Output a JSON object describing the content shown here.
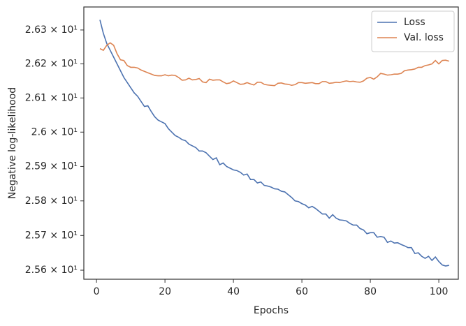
{
  "chart_data": {
    "type": "line",
    "xlabel": "Epochs",
    "ylabel": "Negative log-likelihood",
    "x": [
      1,
      2,
      3,
      4,
      5,
      6,
      7,
      8,
      9,
      10,
      11,
      12,
      13,
      14,
      15,
      16,
      17,
      18,
      19,
      20,
      21,
      22,
      23,
      24,
      25,
      26,
      27,
      28,
      29,
      30,
      31,
      32,
      33,
      34,
      35,
      36,
      37,
      38,
      39,
      40,
      41,
      42,
      43,
      44,
      45,
      46,
      47,
      48,
      49,
      50,
      51,
      52,
      53,
      54,
      55,
      56,
      57,
      58,
      59,
      60,
      61,
      62,
      63,
      64,
      65,
      66,
      67,
      68,
      69,
      70,
      71,
      72,
      73,
      74,
      75,
      76,
      77,
      78,
      79,
      80,
      81,
      82,
      83,
      84,
      85,
      86,
      87,
      88,
      89,
      90,
      91,
      92,
      93,
      94,
      95,
      96,
      97,
      98,
      99,
      100,
      101,
      102,
      103
    ],
    "series": [
      {
        "name": "Loss",
        "color": "#4c72b0",
        "values": [
          26.33,
          26.29,
          26.26,
          26.24,
          26.22,
          26.2,
          26.18,
          26.16,
          26.145,
          26.13,
          26.115,
          26.105,
          26.09,
          26.075,
          26.077,
          26.06,
          26.045,
          26.035,
          26.03,
          26.025,
          26.01,
          26.0,
          25.99,
          25.985,
          25.978,
          25.975,
          25.965,
          25.96,
          25.955,
          25.945,
          25.945,
          25.94,
          25.93,
          25.92,
          25.925,
          25.905,
          25.91,
          25.9,
          25.895,
          25.89,
          25.888,
          25.883,
          25.875,
          25.878,
          25.862,
          25.862,
          25.852,
          25.855,
          25.845,
          25.843,
          25.84,
          25.835,
          25.834,
          25.828,
          25.826,
          25.818,
          25.81,
          25.8,
          25.798,
          25.792,
          25.788,
          25.78,
          25.784,
          25.778,
          25.77,
          25.762,
          25.762,
          25.75,
          25.76,
          25.75,
          25.745,
          25.744,
          25.742,
          25.735,
          25.73,
          25.73,
          25.72,
          25.716,
          25.705,
          25.708,
          25.708,
          25.695,
          25.697,
          25.695,
          25.68,
          25.684,
          25.678,
          25.679,
          25.674,
          25.67,
          25.665,
          25.665,
          25.648,
          25.65,
          25.64,
          25.634,
          25.64,
          25.628,
          25.638,
          25.625,
          25.615,
          25.612,
          25.614
        ]
      },
      {
        "name": "Val. loss",
        "color": "#dd8452",
        "values": [
          26.245,
          26.24,
          26.255,
          26.262,
          26.255,
          26.23,
          26.212,
          26.21,
          26.195,
          26.19,
          26.19,
          26.188,
          26.182,
          26.178,
          26.174,
          26.17,
          26.166,
          26.165,
          26.165,
          26.168,
          26.165,
          26.167,
          26.166,
          26.16,
          26.152,
          26.153,
          26.158,
          26.153,
          26.154,
          26.157,
          26.147,
          26.145,
          26.155,
          26.152,
          26.153,
          26.153,
          26.147,
          26.142,
          26.144,
          26.15,
          26.145,
          26.14,
          26.141,
          26.145,
          26.141,
          26.138,
          26.146,
          26.146,
          26.14,
          26.138,
          26.137,
          26.136,
          26.143,
          26.144,
          26.141,
          26.14,
          26.137,
          26.139,
          26.145,
          26.145,
          26.143,
          26.144,
          26.145,
          26.142,
          26.142,
          26.148,
          26.148,
          26.143,
          26.144,
          26.146,
          26.145,
          26.148,
          26.15,
          26.148,
          26.149,
          26.147,
          26.146,
          26.15,
          26.158,
          26.16,
          26.155,
          26.162,
          26.172,
          26.17,
          26.167,
          26.168,
          26.17,
          26.17,
          26.172,
          26.18,
          26.182,
          26.183,
          26.185,
          26.19,
          26.19,
          26.195,
          26.197,
          26.2,
          26.21,
          26.2,
          26.21,
          26.211,
          26.208
        ]
      }
    ],
    "xlim": [
      -3.7,
      105.7
    ],
    "xticks": [
      0,
      20,
      40,
      60,
      80,
      100
    ],
    "ylim": [
      25.574,
      26.368
    ],
    "yscale": "log",
    "yticks": [
      {
        "value": 25.6,
        "label": "2.56 × 10¹"
      },
      {
        "value": 25.7,
        "label": "2.57 × 10¹"
      },
      {
        "value": 25.8,
        "label": "2.58 × 10¹"
      },
      {
        "value": 25.9,
        "label": "2.59 × 10¹"
      },
      {
        "value": 26.0,
        "label": "2.6 × 10¹"
      },
      {
        "value": 26.1,
        "label": "2.61 × 10¹"
      },
      {
        "value": 26.2,
        "label": "2.62 × 10¹"
      },
      {
        "value": 26.3,
        "label": "2.63 × 10¹"
      }
    ],
    "grid": false,
    "legend": "upper right"
  }
}
